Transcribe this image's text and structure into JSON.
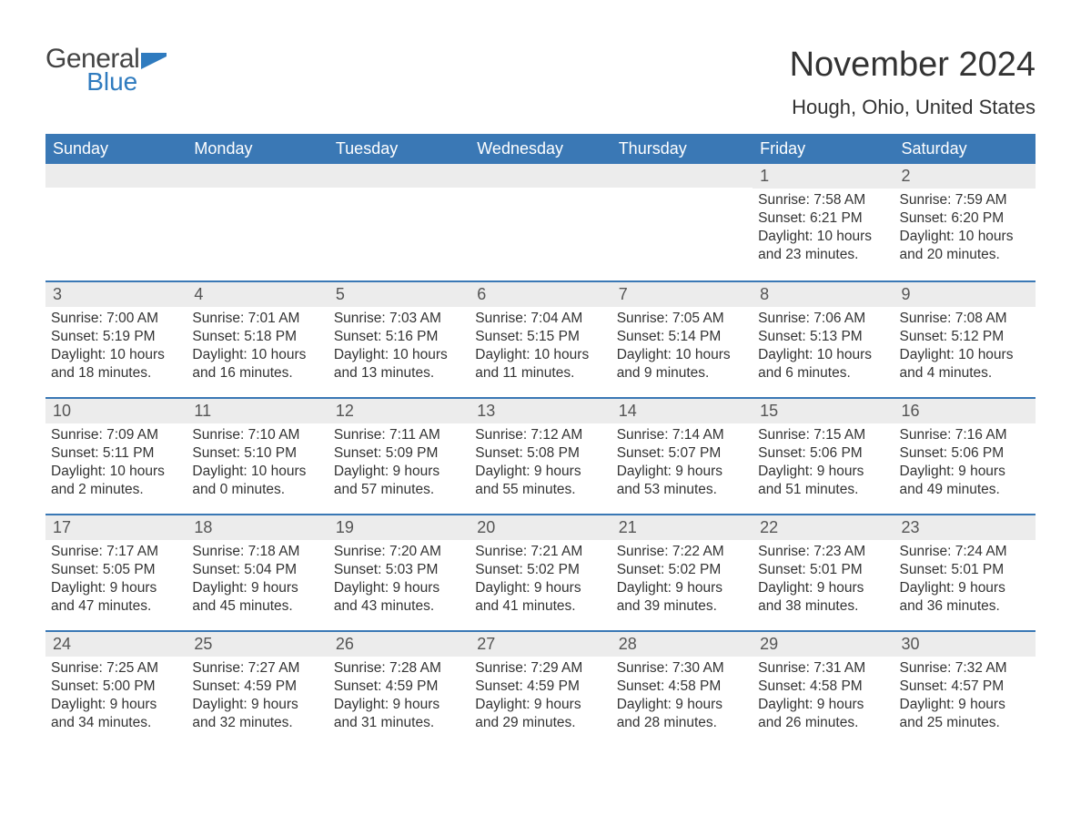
{
  "brand": {
    "word1": "General",
    "word2": "Blue"
  },
  "title": "November 2024",
  "location": "Hough, Ohio, United States",
  "colors": {
    "header_bg": "#3a78b5",
    "header_text": "#ffffff",
    "date_strip_bg": "#ececec",
    "body_text": "#333333",
    "accent": "#2f7bbf"
  },
  "day_headers": [
    "Sunday",
    "Monday",
    "Tuesday",
    "Wednesday",
    "Thursday",
    "Friday",
    "Saturday"
  ],
  "weeks": [
    [
      null,
      null,
      null,
      null,
      null,
      {
        "d": "1",
        "sr": "7:58 AM",
        "ss": "6:21 PM",
        "dl": "10 hours and 23 minutes."
      },
      {
        "d": "2",
        "sr": "7:59 AM",
        "ss": "6:20 PM",
        "dl": "10 hours and 20 minutes."
      }
    ],
    [
      {
        "d": "3",
        "sr": "7:00 AM",
        "ss": "5:19 PM",
        "dl": "10 hours and 18 minutes."
      },
      {
        "d": "4",
        "sr": "7:01 AM",
        "ss": "5:18 PM",
        "dl": "10 hours and 16 minutes."
      },
      {
        "d": "5",
        "sr": "7:03 AM",
        "ss": "5:16 PM",
        "dl": "10 hours and 13 minutes."
      },
      {
        "d": "6",
        "sr": "7:04 AM",
        "ss": "5:15 PM",
        "dl": "10 hours and 11 minutes."
      },
      {
        "d": "7",
        "sr": "7:05 AM",
        "ss": "5:14 PM",
        "dl": "10 hours and 9 minutes."
      },
      {
        "d": "8",
        "sr": "7:06 AM",
        "ss": "5:13 PM",
        "dl": "10 hours and 6 minutes."
      },
      {
        "d": "9",
        "sr": "7:08 AM",
        "ss": "5:12 PM",
        "dl": "10 hours and 4 minutes."
      }
    ],
    [
      {
        "d": "10",
        "sr": "7:09 AM",
        "ss": "5:11 PM",
        "dl": "10 hours and 2 minutes."
      },
      {
        "d": "11",
        "sr": "7:10 AM",
        "ss": "5:10 PM",
        "dl": "10 hours and 0 minutes."
      },
      {
        "d": "12",
        "sr": "7:11 AM",
        "ss": "5:09 PM",
        "dl": "9 hours and 57 minutes."
      },
      {
        "d": "13",
        "sr": "7:12 AM",
        "ss": "5:08 PM",
        "dl": "9 hours and 55 minutes."
      },
      {
        "d": "14",
        "sr": "7:14 AM",
        "ss": "5:07 PM",
        "dl": "9 hours and 53 minutes."
      },
      {
        "d": "15",
        "sr": "7:15 AM",
        "ss": "5:06 PM",
        "dl": "9 hours and 51 minutes."
      },
      {
        "d": "16",
        "sr": "7:16 AM",
        "ss": "5:06 PM",
        "dl": "9 hours and 49 minutes."
      }
    ],
    [
      {
        "d": "17",
        "sr": "7:17 AM",
        "ss": "5:05 PM",
        "dl": "9 hours and 47 minutes."
      },
      {
        "d": "18",
        "sr": "7:18 AM",
        "ss": "5:04 PM",
        "dl": "9 hours and 45 minutes."
      },
      {
        "d": "19",
        "sr": "7:20 AM",
        "ss": "5:03 PM",
        "dl": "9 hours and 43 minutes."
      },
      {
        "d": "20",
        "sr": "7:21 AM",
        "ss": "5:02 PM",
        "dl": "9 hours and 41 minutes."
      },
      {
        "d": "21",
        "sr": "7:22 AM",
        "ss": "5:02 PM",
        "dl": "9 hours and 39 minutes."
      },
      {
        "d": "22",
        "sr": "7:23 AM",
        "ss": "5:01 PM",
        "dl": "9 hours and 38 minutes."
      },
      {
        "d": "23",
        "sr": "7:24 AM",
        "ss": "5:01 PM",
        "dl": "9 hours and 36 minutes."
      }
    ],
    [
      {
        "d": "24",
        "sr": "7:25 AM",
        "ss": "5:00 PM",
        "dl": "9 hours and 34 minutes."
      },
      {
        "d": "25",
        "sr": "7:27 AM",
        "ss": "4:59 PM",
        "dl": "9 hours and 32 minutes."
      },
      {
        "d": "26",
        "sr": "7:28 AM",
        "ss": "4:59 PM",
        "dl": "9 hours and 31 minutes."
      },
      {
        "d": "27",
        "sr": "7:29 AM",
        "ss": "4:59 PM",
        "dl": "9 hours and 29 minutes."
      },
      {
        "d": "28",
        "sr": "7:30 AM",
        "ss": "4:58 PM",
        "dl": "9 hours and 28 minutes."
      },
      {
        "d": "29",
        "sr": "7:31 AM",
        "ss": "4:58 PM",
        "dl": "9 hours and 26 minutes."
      },
      {
        "d": "30",
        "sr": "7:32 AM",
        "ss": "4:57 PM",
        "dl": "9 hours and 25 minutes."
      }
    ]
  ],
  "labels": {
    "sunrise": "Sunrise: ",
    "sunset": "Sunset: ",
    "daylight": "Daylight: "
  }
}
